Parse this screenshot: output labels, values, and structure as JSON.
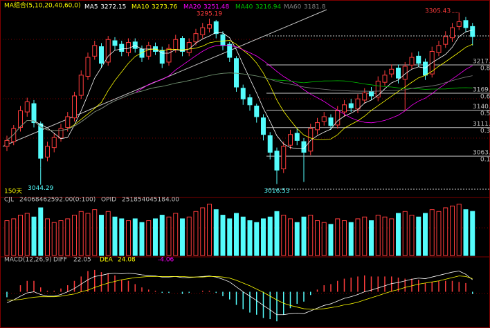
{
  "chart_data": [
    {
      "type": "candlestick",
      "title": "MA组合(5,10,20,40,60,0)",
      "period_label": "150天",
      "ma_legend": [
        {
          "name": "MA5",
          "value": 3272.15,
          "color": "#ffffff",
          "period": 5
        },
        {
          "name": "MA10",
          "value": 3273.76,
          "color": "#ffff00",
          "period": 10
        },
        {
          "name": "MA20",
          "value": 3251.48,
          "color": "#ff00ff",
          "period": 20
        },
        {
          "name": "MA40",
          "value": 3216.94,
          "color": "#00c000",
          "period": 40
        },
        {
          "name": "MA60",
          "value": 3181.8,
          "color": "#808080",
          "period": 60
        }
      ],
      "up_color": "#ff3c3c",
      "down_color": "#54fcfc",
      "ylim": [
        2995,
        3315
      ],
      "levels": [
        {
          "value": 3217.2,
          "label": "3217.",
          "ratio_label": "0.8"
        },
        {
          "value": 3169.5,
          "label": "3169.",
          "ratio_label": "0.6"
        },
        {
          "value": 3140.9,
          "label": "3140.",
          "ratio_label": "0.5"
        },
        {
          "value": 3111.7,
          "label": "3111.",
          "ratio_label": "0.3"
        },
        {
          "value": 3063.5,
          "label": "3063.",
          "ratio_label": "0.1"
        }
      ],
      "open": [
        3080,
        3088,
        3112,
        3138,
        3152,
        3118,
        3062,
        3078,
        3094,
        3112,
        3128,
        3166,
        3198,
        3232,
        3248,
        3222,
        3258,
        3252,
        3238,
        3256,
        3244,
        3232,
        3248,
        3242,
        3222,
        3243,
        3262,
        3238,
        3256,
        3268,
        3279,
        3290,
        3268,
        3252,
        3228,
        3178,
        3162,
        3148,
        3128,
        3098,
        3072,
        3042,
        3082,
        3102,
        3088,
        3072,
        3108,
        3122,
        3128,
        3116,
        3138,
        3152,
        3143,
        3158,
        3172,
        3163,
        3188,
        3202,
        3212,
        3193,
        3217,
        3232,
        3222,
        3202,
        3238,
        3252,
        3263,
        3282,
        3292,
        3282
      ],
      "high": [
        3098,
        3116,
        3148,
        3162,
        3158,
        3122,
        3088,
        3102,
        3118,
        3138,
        3172,
        3208,
        3238,
        3258,
        3254,
        3266,
        3264,
        3258,
        3262,
        3262,
        3250,
        3256,
        3255,
        3248,
        3252,
        3268,
        3266,
        3262,
        3278,
        3288,
        3295.19,
        3293,
        3274,
        3256,
        3232,
        3184,
        3168,
        3152,
        3134,
        3104,
        3078,
        3088,
        3108,
        3110,
        3094,
        3118,
        3128,
        3138,
        3134,
        3148,
        3158,
        3160,
        3168,
        3178,
        3180,
        3198,
        3208,
        3218,
        3218,
        3222,
        3238,
        3240,
        3228,
        3248,
        3258,
        3274,
        3288,
        3305.43,
        3298,
        3288
      ],
      "low": [
        3072,
        3082,
        3105,
        3130,
        3112,
        3044.29,
        3055,
        3070,
        3088,
        3105,
        3122,
        3160,
        3192,
        3226,
        3212,
        3216,
        3242,
        3232,
        3232,
        3238,
        3222,
        3226,
        3234,
        3212,
        3216,
        3238,
        3232,
        3232,
        3250,
        3262,
        3272,
        3262,
        3242,
        3222,
        3172,
        3150,
        3140,
        3120,
        3090,
        3058,
        3016.53,
        3035,
        3075,
        3082,
        3020,
        3065,
        3100,
        3115,
        3108,
        3110,
        3130,
        3138,
        3136,
        3152,
        3158,
        3156,
        3182,
        3196,
        3186,
        3140,
        3210,
        3214,
        3192,
        3196,
        3232,
        3246,
        3256,
        3276,
        3272,
        3250
      ],
      "close": [
        3090,
        3110,
        3140,
        3155,
        3120,
        3060,
        3080,
        3095,
        3110,
        3130,
        3165,
        3200,
        3230,
        3250,
        3220,
        3260,
        3250,
        3240,
        3255,
        3245,
        3230,
        3250,
        3240,
        3220,
        3245,
        3260,
        3240,
        3255,
        3270,
        3280,
        3285,
        3270,
        3250,
        3230,
        3180,
        3160,
        3150,
        3130,
        3100,
        3070,
        3040,
        3080,
        3100,
        3090,
        3070,
        3110,
        3120,
        3130,
        3115,
        3140,
        3150,
        3145,
        3160,
        3170,
        3165,
        3190,
        3200,
        3210,
        3195,
        3215,
        3230,
        3220,
        3200,
        3240,
        3250,
        3265,
        3280,
        3290,
        3280,
        3265
      ]
    },
    {
      "type": "bar",
      "title": "CJL",
      "value_text": "24068462592.00(0:100)",
      "opid_label": "OPID",
      "opid_text": "251854045184.00",
      "ylim": [
        0,
        29000000000.0
      ],
      "values": [
        19000000000.0,
        20000000000.0,
        22000000000.0,
        23000000000.0,
        21000000000.0,
        26000000000.0,
        20000000000.0,
        18000000000.0,
        19000000000.0,
        20000000000.0,
        22000000000.0,
        24000000000.0,
        23000000000.0,
        25000000000.0,
        22000000000.0,
        24000000000.0,
        21000000000.0,
        20000000000.0,
        19000000000.0,
        20000000000.0,
        18000000000.0,
        19000000000.0,
        20000000000.0,
        22000000000.0,
        21000000000.0,
        23000000000.0,
        20000000000.0,
        21000000000.0,
        24000000000.0,
        26000000000.0,
        28000000000.0,
        25000000000.0,
        22000000000.0,
        20000000000.0,
        23000000000.0,
        21000000000.0,
        19000000000.0,
        18000000000.0,
        20000000000.0,
        21000000000.0,
        24000000000.0,
        22000000000.0,
        20000000000.0,
        18000000000.0,
        21000000000.0,
        22000000000.0,
        19000000000.0,
        18000000000.0,
        17000000000.0,
        20000000000.0,
        19000000000.0,
        18000000000.0,
        20000000000.0,
        21000000000.0,
        19000000000.0,
        22000000000.0,
        21000000000.0,
        20000000000.0,
        23000000000.0,
        24000000000.0,
        22000000000.0,
        21000000000.0,
        23000000000.0,
        25000000000.0,
        24000000000.0,
        26000000000.0,
        27000000000.0,
        28000000000.0,
        25000000000.0,
        24068462592.0
      ]
    },
    {
      "type": "macd",
      "title": "MACD(12,26,9)",
      "ylim": [
        -60,
        50
      ],
      "series": [
        {
          "name": "DIFF",
          "color": "#ffffff",
          "values": [
            -20,
            -15,
            -8,
            -2,
            0,
            -5,
            -8,
            -8,
            -5,
            0,
            6,
            14,
            22,
            28,
            30,
            33,
            34,
            33,
            34,
            33,
            31,
            30,
            29,
            27,
            27,
            28,
            26,
            26,
            27,
            28,
            29,
            27,
            23,
            18,
            9,
            0,
            -8,
            -16,
            -25,
            -33,
            -42,
            -42,
            -40,
            -39,
            -40,
            -35,
            -30,
            -25,
            -22,
            -17,
            -12,
            -9,
            -5,
            0,
            3,
            7,
            11,
            15,
            17,
            20,
            23,
            25,
            24,
            27,
            30,
            33,
            36,
            38,
            32,
            22.05
          ]
        },
        {
          "name": "DEA",
          "color": "#ffff00",
          "values": [
            -15,
            -15,
            -14,
            -12,
            -10,
            -9,
            -9,
            -9,
            -8,
            -6,
            -4,
            0,
            3,
            8,
            12,
            16,
            19,
            22,
            24,
            26,
            27,
            28,
            28,
            28,
            28,
            28,
            28,
            27,
            27,
            27,
            28,
            28,
            27,
            25,
            21,
            16,
            11,
            5,
            -1,
            -8,
            -15,
            -21,
            -25,
            -28,
            -31,
            -32,
            -32,
            -31,
            -29,
            -27,
            -24,
            -22,
            -19,
            -15,
            -11,
            -7,
            -3,
            1,
            4,
            8,
            11,
            14,
            16,
            18,
            20,
            23,
            26,
            29,
            28,
            24.08
          ]
        }
      ],
      "values": [
        -10,
        0,
        12,
        20,
        20,
        8,
        2,
        2,
        6,
        12,
        20,
        28,
        38,
        40,
        36,
        34,
        30,
        22,
        20,
        14,
        8,
        4,
        2,
        -2,
        -2,
        0,
        -4,
        -2,
        0,
        2,
        2,
        -2,
        -8,
        -14,
        -24,
        -32,
        -38,
        -42,
        -48,
        -50,
        -54,
        -42,
        -30,
        -22,
        -18,
        -6,
        4,
        12,
        14,
        20,
        24,
        26,
        28,
        30,
        28,
        28,
        28,
        28,
        26,
        24,
        24,
        22,
        16,
        18,
        20,
        20,
        20,
        18,
        16,
        -4.06
      ]
    }
  ]
}
